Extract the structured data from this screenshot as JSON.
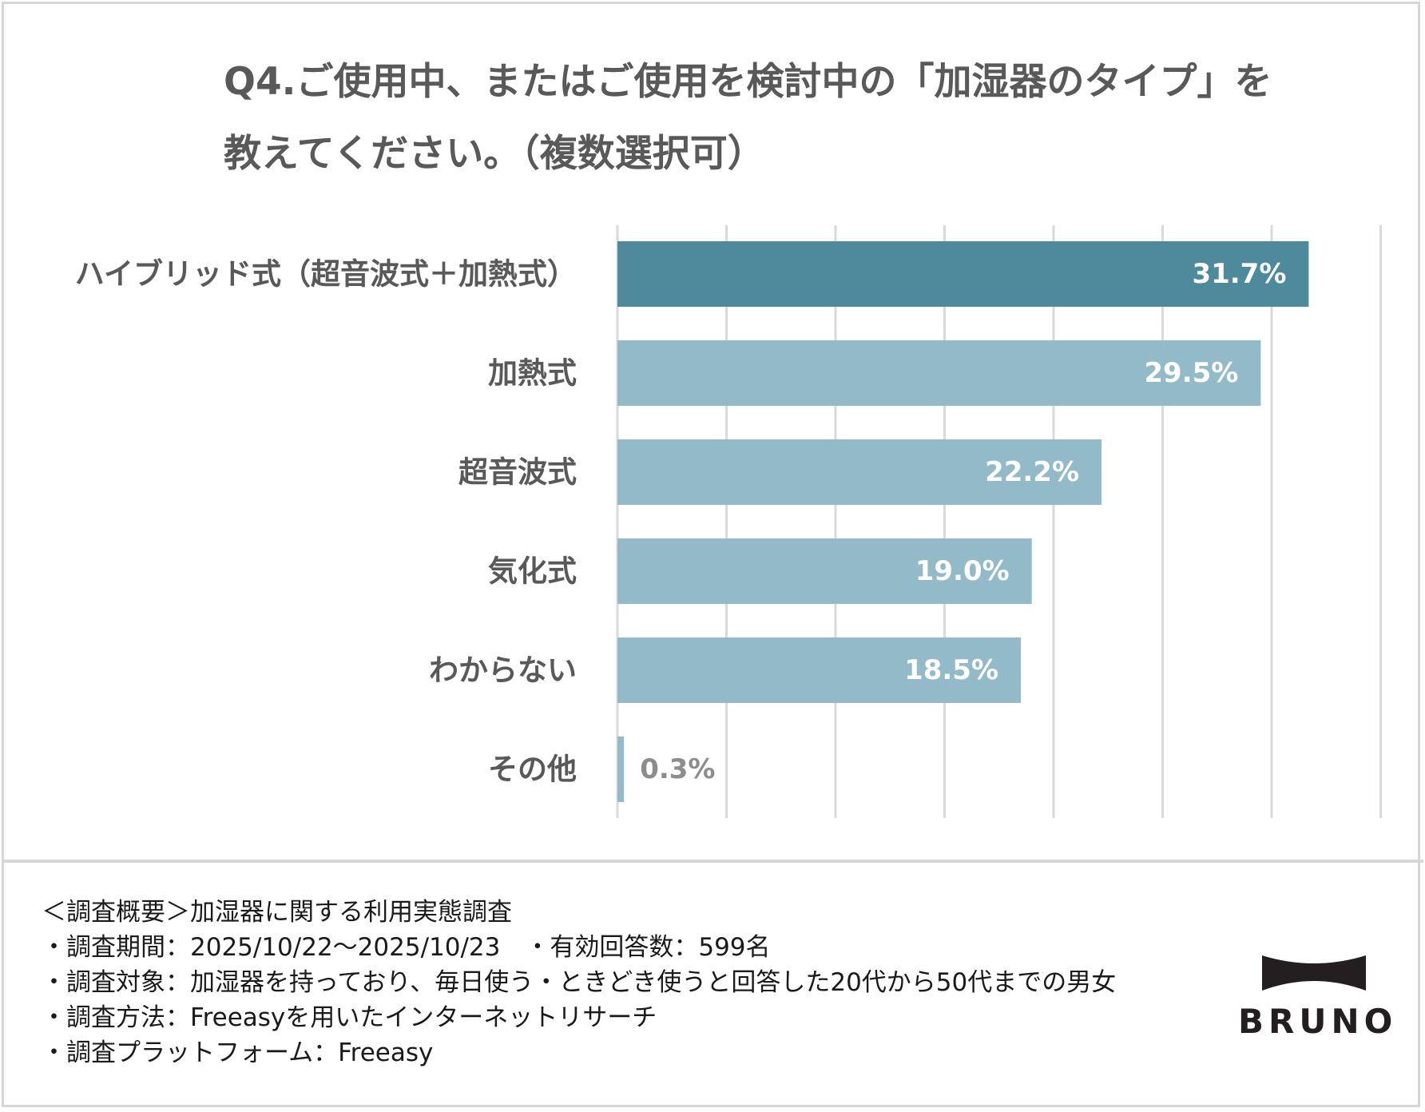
{
  "title": {
    "line1": "Q4.ご使用中、またはご使用を検討中の「加湿器のタイプ」を",
    "line2": "教えてください。（複数選択可）"
  },
  "colors": {
    "highlight": "#4e8a9b",
    "bar": "#92bac8",
    "grid": "#d9d9d9",
    "label": "#595959",
    "value_light": "#ffffff",
    "value_dark": "#8c8c8c"
  },
  "chart_data": {
    "type": "bar",
    "orientation": "horizontal",
    "title": "Q4.ご使用中、またはご使用を検討中の「加湿器のタイプ」を教えてください。（複数選択可）",
    "categories": [
      "ハイブリッド式（超音波式＋加熱式）",
      "加熱式",
      "超音波式",
      "気化式",
      "わからない",
      "その他"
    ],
    "values": [
      31.7,
      29.5,
      22.2,
      19.0,
      18.5,
      0.3
    ],
    "value_labels": [
      "31.7%",
      "29.5%",
      "22.2%",
      "19.0%",
      "18.5%",
      "0.3%"
    ],
    "highlight_index": 0,
    "xlim": [
      0,
      35
    ],
    "grid_step": 5,
    "grid": true,
    "xlabel": "",
    "ylabel": ""
  },
  "notes": {
    "heading": "＜調査概要＞加湿器に関する利用実態調査",
    "period": "・調査期間：2025/10/22～2025/10/23　・有効回答数：599名",
    "target": "・調査対象：加湿器を持っており、毎日使う・ときどき使うと回答した20代から50代までの男女",
    "method": "・調査方法：Freeasyを用いたインターネットリサーチ",
    "platform": "・調査プラットフォーム：Freeasy"
  },
  "logo": {
    "text": "BRUNO"
  }
}
